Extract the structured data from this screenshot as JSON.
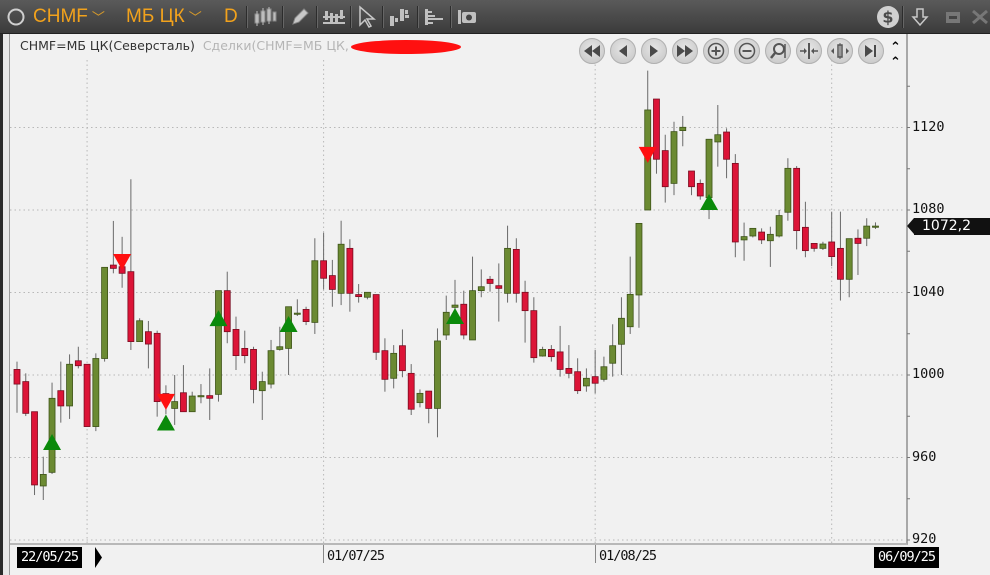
{
  "toolbar": {
    "ticker": "CHMF",
    "board": "МБ ЦК",
    "interval": "D",
    "icons": [
      "status-circle-icon",
      "candles-icon",
      "pencil-icon",
      "chart-settings-icon",
      "cursor-icon",
      "bar-volume-icon",
      "orderbook-icon",
      "camera-icon",
      "dollar-icon",
      "download-arrow-icon",
      "minimize-icon",
      "close-icon"
    ]
  },
  "legend": {
    "series": "CHMF=МБ ЦК(Северсталь)",
    "trades": "Сделки(CHMF=МБ ЦК,"
  },
  "nav_buttons": [
    "scroll-start",
    "step-back",
    "step-forward",
    "scroll-end",
    "zoom-in",
    "zoom-out",
    "zoom-fit",
    "compress",
    "expand",
    "go-to-last"
  ],
  "colors": {
    "up": "#6b8a32",
    "down": "#dc1437",
    "buy": "#0b8a0b",
    "sell": "#ff1010",
    "accent": "#f2a21c"
  },
  "chart_data": {
    "type": "candlestick",
    "ylim": [
      920,
      1150
    ],
    "y_ticks": [
      "1120",
      "1080",
      "1040",
      "1000",
      "960",
      "920"
    ],
    "y_tick_values": [
      1120,
      1080,
      1040,
      1000,
      960,
      920
    ],
    "last_price": "1072,2",
    "x_start_label": "22/05/25",
    "x_end_label": "06/09/25",
    "x_ticks": [
      {
        "label": "01/07/25",
        "candle": 35
      },
      {
        "label": "01/08/25",
        "candle": 66
      }
    ],
    "x_grid_candles": [
      8,
      35,
      66,
      93
    ],
    "grid": true,
    "candle_fields": [
      "open",
      "high",
      "low",
      "close"
    ],
    "candles": [
      [
        1002.7,
        1006.5,
        981.7,
        995.6
      ],
      [
        996.8,
        1000.8,
        980.1,
        981.4
      ],
      [
        982.2,
        982.2,
        941.8,
        946.7
      ],
      [
        946.2,
        960.4,
        939.4,
        951.8
      ],
      [
        952.8,
        996.3,
        952,
        988.7
      ],
      [
        992.4,
        1006.5,
        976.9,
        985
      ],
      [
        985,
        1010,
        978.7,
        1005.2
      ],
      [
        1006.9,
        1013.7,
        1003.2,
        1004.5
      ],
      [
        1005.2,
        1005.2,
        975,
        975
      ],
      [
        975,
        1010.5,
        972.8,
        1008
      ],
      [
        1008,
        1052.2,
        1006.5,
        1052.2
      ],
      [
        1053.3,
        1074.7,
        1049.3,
        1051.7
      ],
      [
        1052.5,
        1067,
        1042.3,
        1049.3
      ],
      [
        1050.1,
        1094.9,
        1012.1,
        1016.2
      ],
      [
        1016.2,
        1027.5,
        1016.2,
        1026.3
      ],
      [
        1021,
        1026.2,
        1003.2,
        1015
      ],
      [
        1020.2,
        1021.5,
        979.8,
        987.1
      ],
      [
        991,
        995,
        981,
        987
      ],
      [
        983.8,
        1000,
        975.8,
        987.1
      ],
      [
        991.4,
        1004.8,
        982.2,
        982.2
      ],
      [
        982.2,
        991.9,
        982.2,
        989.8
      ],
      [
        989.9,
        995.6,
        986.3,
        990
      ],
      [
        990,
        1003.2,
        978.2,
        988.7
      ],
      [
        990.6,
        1040.9,
        987.1,
        1040.9
      ],
      [
        1040.9,
        1050.1,
        1015.4,
        1021
      ],
      [
        1022.1,
        1028.3,
        1002.4,
        1009.4
      ],
      [
        1012.9,
        1021.5,
        1005.7,
        1009.4
      ],
      [
        1012.4,
        1013.7,
        986.3,
        993
      ],
      [
        992.4,
        1001.6,
        978.2,
        996.8
      ],
      [
        995.6,
        1017,
        993.5,
        1011.8
      ],
      [
        1012.4,
        1023.4,
        1011.8,
        1013.7
      ],
      [
        1012.9,
        1033.1,
        1000,
        1033.1
      ],
      [
        1029.9,
        1036.7,
        1028.6,
        1030
      ],
      [
        1031.8,
        1033.1,
        1024.2,
        1025.9
      ],
      [
        1025.5,
        1066.3,
        1019.9,
        1055.4
      ],
      [
        1055.4,
        1069,
        1041.5,
        1046.9
      ],
      [
        1048.2,
        1055.8,
        1033.1,
        1041.5
      ],
      [
        1039.6,
        1074.8,
        1033.9,
        1063.4
      ],
      [
        1061.4,
        1065.8,
        1030.7,
        1039.6
      ],
      [
        1039,
        1044.1,
        1035.1,
        1038
      ],
      [
        1037.7,
        1040.1,
        1036.7,
        1040.1
      ],
      [
        1039,
        1039,
        1007.3,
        1011
      ],
      [
        1011.8,
        1017.8,
        991.9,
        997.9
      ],
      [
        998.4,
        1014.5,
        993.5,
        1010.5
      ],
      [
        1014.2,
        1022.1,
        998.9,
        1002.1
      ],
      [
        1000.8,
        1005.3,
        980.6,
        983.4
      ],
      [
        986.6,
        993,
        984.3,
        991.1
      ],
      [
        992.2,
        992.2,
        976.6,
        983.8
      ],
      [
        983.8,
        1022.6,
        969.8,
        1016.5
      ],
      [
        1019.4,
        1038.5,
        1017,
        1030.4
      ],
      [
        1032.8,
        1046.1,
        1025,
        1033.9
      ],
      [
        1034.3,
        1040.9,
        1017.3,
        1019.4
      ],
      [
        1017,
        1057.4,
        1017,
        1040.9
      ],
      [
        1040.9,
        1051.2,
        1037.7,
        1042.8
      ],
      [
        1046.4,
        1048,
        1040.4,
        1044.4
      ],
      [
        1043.3,
        1054.1,
        1025.9,
        1042
      ],
      [
        1039.6,
        1072.4,
        1035.1,
        1061.4
      ],
      [
        1060.9,
        1066.3,
        1035.1,
        1039.6
      ],
      [
        1040.1,
        1045.7,
        1015.7,
        1031.2
      ],
      [
        1031.2,
        1037.7,
        1006,
        1008.4
      ],
      [
        1009.2,
        1013.7,
        1008.9,
        1012.4
      ],
      [
        1012.4,
        1014.5,
        1006.5,
        1008.9
      ],
      [
        1011.2,
        1023.8,
        999.2,
        1002.7
      ],
      [
        1003.2,
        1014.5,
        998.4,
        1000.8
      ],
      [
        1001.6,
        1008.1,
        990.8,
        992.4
      ],
      [
        994.7,
        1003.2,
        991.9,
        998.4
      ],
      [
        999.2,
        1012.1,
        991.1,
        996
      ],
      [
        997.9,
        1008.9,
        996.8,
        1004
      ],
      [
        1005.7,
        1024.6,
        999.2,
        1014.2
      ],
      [
        1014.9,
        1037.7,
        1000,
        1027.5
      ],
      [
        1023.4,
        1057.4,
        1019.9,
        1039.1
      ],
      [
        1038.8,
        1073.5,
        1022.9,
        1073.5
      ],
      [
        1080,
        1147.6,
        1080,
        1128.5
      ],
      [
        1133.8,
        1133.8,
        1097.6,
        1104.6
      ],
      [
        1108.8,
        1116.5,
        1083.6,
        1091.3
      ],
      [
        1092.9,
        1122.8,
        1087.2,
        1118
      ],
      [
        1118.5,
        1125.6,
        1110.9,
        1120.1
      ],
      [
        1098.9,
        1098.9,
        1087.2,
        1091.3
      ],
      [
        1092.9,
        1094.8,
        1085,
        1086.8
      ],
      [
        1086,
        1114.3,
        1075.6,
        1114.3
      ],
      [
        1113,
        1130.9,
        1101,
        1116.5
      ],
      [
        1117.8,
        1119.6,
        1095.4,
        1104.6
      ],
      [
        1102.6,
        1107.1,
        1057.1,
        1064.5
      ],
      [
        1065.5,
        1073.9,
        1055.4,
        1067.1
      ],
      [
        1067.4,
        1071.1,
        1066.7,
        1071.1
      ],
      [
        1069.3,
        1071.1,
        1063.5,
        1065.5
      ],
      [
        1065.1,
        1071.9,
        1052.4,
        1068.2
      ],
      [
        1067.4,
        1080,
        1066.7,
        1077.3
      ],
      [
        1078.9,
        1105.1,
        1074.8,
        1100.2
      ],
      [
        1100.2,
        1101.3,
        1060.9,
        1070
      ],
      [
        1071.6,
        1084,
        1057.1,
        1060.3
      ],
      [
        1063.8,
        1063.8,
        1059.8,
        1061.4
      ],
      [
        1061.4,
        1064.6,
        1060.6,
        1063.5
      ],
      [
        1064.5,
        1079.2,
        1052.8,
        1057.4
      ],
      [
        1061.4,
        1079.2,
        1036.1,
        1046.4
      ],
      [
        1046.4,
        1066.1,
        1037.7,
        1066.1
      ],
      [
        1066.3,
        1070.6,
        1048.5,
        1063.8
      ],
      [
        1066.3,
        1076,
        1062.5,
        1072.2
      ],
      [
        1072.2,
        1074,
        1070.8,
        1072.2
      ]
    ],
    "trade_markers": [
      {
        "candle": 4,
        "side": "buy",
        "price": 967.5
      },
      {
        "candle": 12,
        "side": "sell",
        "price": 1054.8
      },
      {
        "candle": 17,
        "side": "sell",
        "price": 987
      },
      {
        "candle": 17,
        "side": "buy",
        "price": 977
      },
      {
        "candle": 23,
        "side": "buy",
        "price": 1027.6
      },
      {
        "candle": 31,
        "side": "buy",
        "price": 1024.7
      },
      {
        "candle": 50,
        "side": "buy",
        "price": 1028.6
      },
      {
        "candle": 72,
        "side": "sell",
        "price": 1106.7
      },
      {
        "candle": 79,
        "side": "buy",
        "price": 1083.9
      }
    ]
  }
}
